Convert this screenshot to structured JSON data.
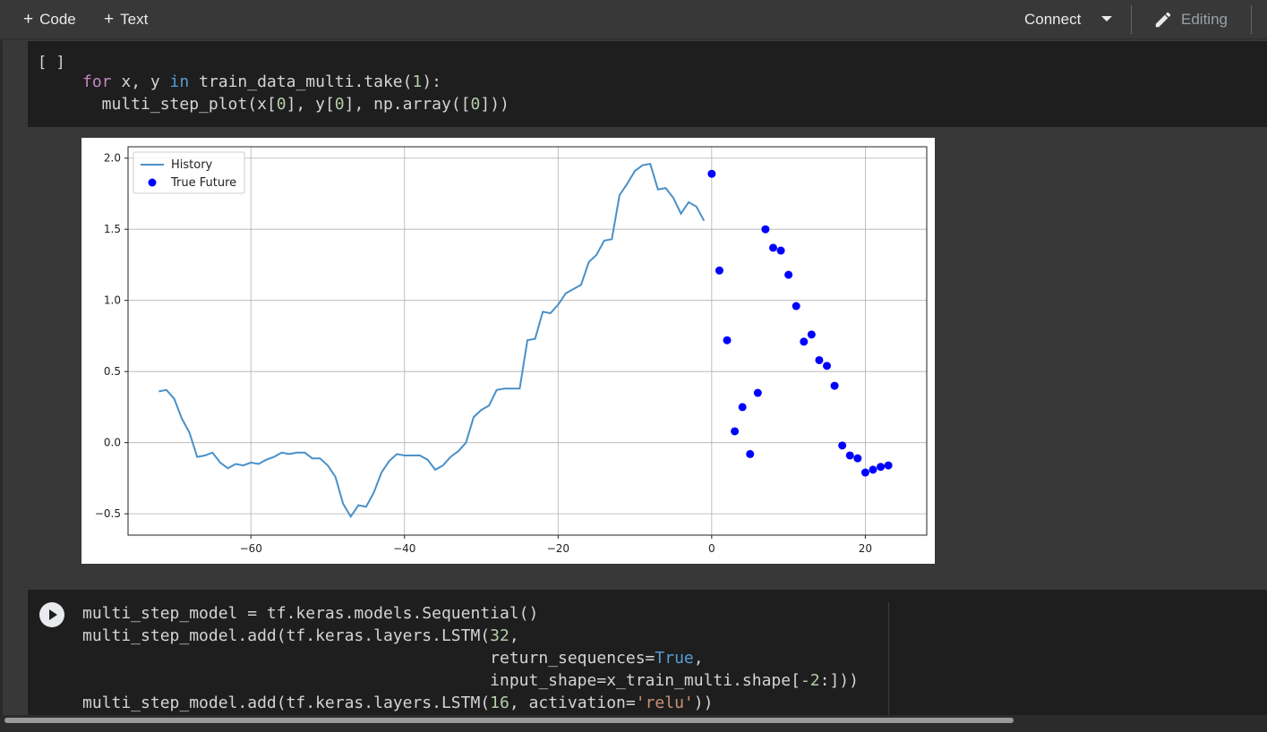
{
  "toolbar": {
    "code_label": "Code",
    "text_label": "Text",
    "connect_label": "Connect",
    "editing_label": "Editing"
  },
  "cell1": {
    "execution_count": "[ ]",
    "code_lines": [
      [
        {
          "t": "for",
          "c": "kw"
        },
        {
          "t": " x, y "
        },
        {
          "t": "in",
          "c": "kw2"
        },
        {
          "t": " train_data_multi.take("
        },
        {
          "t": "1",
          "c": "num"
        },
        {
          "t": "):"
        }
      ],
      [
        {
          "t": "  multi_step_plot(x["
        },
        {
          "t": "0",
          "c": "num"
        },
        {
          "t": "], y["
        },
        {
          "t": "0",
          "c": "num"
        },
        {
          "t": "], np.array(["
        },
        {
          "t": "0",
          "c": "num"
        },
        {
          "t": "]))"
        }
      ]
    ]
  },
  "chart_data": {
    "type": "line",
    "legend": {
      "placement": "upper-left",
      "entries": [
        "History",
        "True Future"
      ]
    },
    "grid": true,
    "xlim": [
      -76,
      28
    ],
    "ylim": [
      -0.65,
      2.08
    ],
    "xticks": [
      -60,
      -40,
      -20,
      0,
      20
    ],
    "xtick_labels": [
      "−60",
      "−40",
      "−20",
      "0",
      "20"
    ],
    "yticks": [
      -0.5,
      0.0,
      0.5,
      1.0,
      1.5,
      2.0
    ],
    "ytick_labels": [
      "−0.5",
      "0.0",
      "0.5",
      "1.0",
      "1.5",
      "2.0"
    ],
    "series": [
      {
        "name": "History",
        "kind": "line",
        "color": "#4a90c8",
        "x": [
          -72,
          -71,
          -70,
          -69,
          -68,
          -67,
          -66,
          -65,
          -64,
          -63,
          -62,
          -61,
          -60,
          -59,
          -58,
          -57,
          -56,
          -55,
          -54,
          -53,
          -52,
          -51,
          -50,
          -49,
          -48,
          -47,
          -46,
          -45,
          -44,
          -43,
          -42,
          -41,
          -40,
          -39,
          -38,
          -37,
          -36,
          -35,
          -34,
          -33,
          -32,
          -31,
          -30,
          -29,
          -28,
          -27,
          -26,
          -25,
          -24,
          -23,
          -22,
          -21,
          -20,
          -19,
          -18,
          -17,
          -16,
          -15,
          -14,
          -13,
          -12,
          -11,
          -10,
          -9,
          -8,
          -7,
          -6,
          -5,
          -4,
          -3,
          -2,
          -1
        ],
        "y": [
          0.36,
          0.37,
          0.31,
          0.17,
          0.07,
          -0.1,
          -0.09,
          -0.07,
          -0.14,
          -0.18,
          -0.15,
          -0.16,
          -0.14,
          -0.15,
          -0.12,
          -0.1,
          -0.07,
          -0.08,
          -0.07,
          -0.07,
          -0.11,
          -0.11,
          -0.16,
          -0.24,
          -0.43,
          -0.52,
          -0.44,
          -0.45,
          -0.35,
          -0.21,
          -0.13,
          -0.08,
          -0.09,
          -0.09,
          -0.09,
          -0.12,
          -0.19,
          -0.16,
          -0.1,
          -0.06,
          0.0,
          0.18,
          0.23,
          0.26,
          0.37,
          0.38,
          0.38,
          0.38,
          0.72,
          0.73,
          0.92,
          0.91,
          0.97,
          1.05,
          1.08,
          1.11,
          1.27,
          1.32,
          1.42,
          1.43,
          1.74,
          1.82,
          1.91,
          1.95,
          1.96,
          1.78,
          1.79,
          1.72,
          1.61,
          1.69,
          1.66,
          1.56
        ]
      },
      {
        "name": "True Future",
        "kind": "scatter",
        "color": "#0000ff",
        "x": [
          0,
          1,
          2,
          3,
          4,
          5,
          6,
          7,
          8,
          9,
          10,
          11,
          12,
          13,
          14,
          15,
          16,
          17,
          18,
          19,
          20,
          21,
          22,
          23
        ],
        "y": [
          1.89,
          1.21,
          0.72,
          0.08,
          0.25,
          -0.08,
          0.35,
          1.5,
          1.37,
          1.35,
          1.18,
          0.96,
          0.71,
          0.76,
          0.58,
          0.54,
          0.4,
          -0.02,
          -0.09,
          -0.11,
          -0.21,
          -0.19,
          -0.17,
          -0.16
        ]
      }
    ]
  },
  "cell2": {
    "code_lines": [
      [
        {
          "t": "multi_step_model = tf.keras.models.Sequential()"
        }
      ],
      [
        {
          "t": "multi_step_model.add(tf.keras.layers.LSTM("
        },
        {
          "t": "32",
          "c": "num"
        },
        {
          "t": ","
        }
      ],
      [
        {
          "t": "                                          return_sequences="
        },
        {
          "t": "True",
          "c": "kw2"
        },
        {
          "t": ","
        }
      ],
      [
        {
          "t": "                                          input_shape=x_train_multi.shape["
        },
        {
          "t": "-2",
          "c": "num"
        },
        {
          "t": ":]))"
        }
      ],
      [
        {
          "t": "multi_step_model.add(tf.keras.layers.LSTM("
        },
        {
          "t": "16",
          "c": "num"
        },
        {
          "t": ", activation="
        },
        {
          "t": "'relu'",
          "c": "str"
        },
        {
          "t": "))"
        }
      ]
    ]
  }
}
